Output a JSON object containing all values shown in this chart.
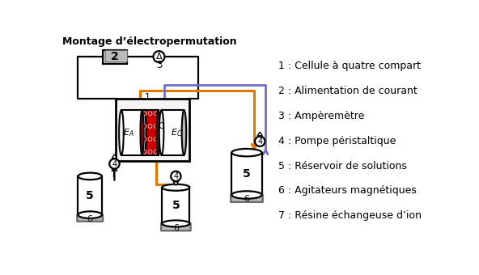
{
  "title": "Montage d’électropermutation",
  "legend": [
    "1 : Cellule à quatre compart",
    "2 : Alimentation de courant",
    "3 : Ampèremètre",
    "4 : Pompe péristaltique",
    "5 : Réservoir de solutions",
    "6 : Agitateurs magnétiques",
    "7 : Résine échangeuse d’ion"
  ],
  "color_orange": "#E07800",
  "color_purple": "#7070CC",
  "color_black": "#000000",
  "color_red": "#CC0000",
  "color_darkred": "#990000",
  "color_gray": "#999999",
  "color_darkgray": "#666666",
  "color_lightgray": "#BBBBBB",
  "color_white": "#FFFFFF"
}
